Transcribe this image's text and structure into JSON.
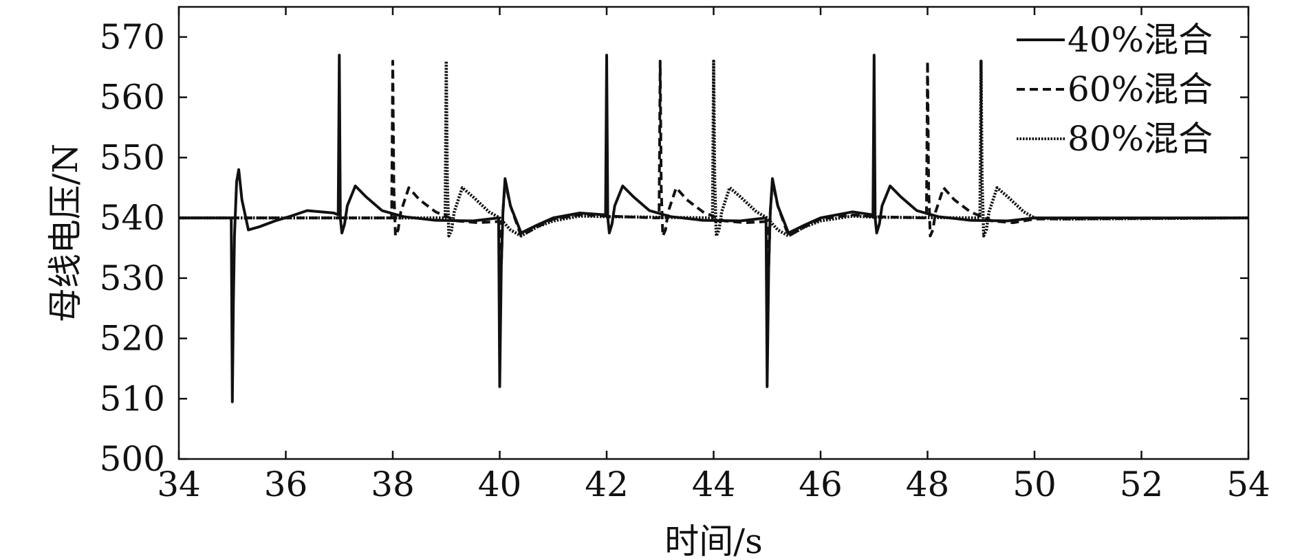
{
  "chart_data": {
    "type": "line",
    "title": "",
    "xlabel": "时间/s",
    "ylabel": "母线电压/N",
    "xlim": [
      34,
      54
    ],
    "ylim": [
      500,
      575
    ],
    "xticks": [
      34,
      36,
      38,
      40,
      42,
      44,
      46,
      48,
      50,
      52,
      54
    ],
    "yticks": [
      500,
      510,
      520,
      530,
      540,
      550,
      560,
      570
    ],
    "grid": false,
    "legend_position": "top-right",
    "series": [
      {
        "name": "40%混合",
        "style": "solid",
        "x": [
          34.0,
          34.98,
          35.0,
          35.02,
          35.04,
          35.08,
          35.12,
          35.18,
          35.3,
          35.5,
          35.8,
          36.1,
          36.4,
          36.9,
          36.98,
          37.0,
          37.02,
          37.05,
          37.1,
          37.15,
          37.3,
          37.5,
          37.8,
          38.2,
          38.8,
          39.5,
          39.98,
          40.0,
          40.03,
          40.06,
          40.1,
          40.2,
          40.4,
          40.7,
          41.0,
          41.5,
          41.98,
          42.0,
          42.02,
          42.05,
          42.1,
          42.15,
          42.3,
          42.5,
          42.8,
          43.2,
          43.8,
          44.5,
          44.98,
          45.0,
          45.03,
          45.06,
          45.1,
          45.2,
          45.4,
          45.7,
          46.0,
          46.6,
          46.98,
          47.0,
          47.02,
          47.05,
          47.1,
          47.15,
          47.3,
          47.5,
          47.8,
          48.2,
          48.8,
          49.5,
          50.0,
          54.0
        ],
        "y": [
          540.0,
          540.0,
          509.5,
          526.0,
          537.0,
          546.0,
          548.0,
          543.0,
          538.0,
          538.5,
          539.5,
          540.3,
          541.2,
          540.8,
          540.5,
          567.0,
          540.0,
          537.5,
          539.0,
          542.0,
          545.3,
          543.5,
          541.2,
          540.2,
          539.6,
          539.5,
          540.0,
          512.0,
          532.0,
          541.0,
          546.5,
          542.0,
          537.5,
          538.8,
          540.0,
          540.8,
          540.5,
          567.0,
          540.0,
          537.5,
          539.0,
          542.0,
          545.3,
          543.5,
          541.2,
          540.2,
          539.6,
          539.5,
          540.0,
          512.0,
          532.0,
          541.0,
          546.5,
          542.0,
          537.5,
          538.8,
          540.0,
          541.0,
          540.5,
          567.0,
          540.0,
          537.5,
          539.0,
          542.0,
          545.3,
          543.5,
          541.2,
          540.2,
          539.6,
          539.5,
          540.0,
          540.0
        ]
      },
      {
        "name": "60%混合",
        "style": "dashed",
        "x": [
          34.0,
          37.9,
          37.98,
          38.0,
          38.02,
          38.05,
          38.1,
          38.15,
          38.3,
          38.5,
          38.8,
          39.2,
          39.6,
          40.0,
          40.03,
          40.06,
          40.1,
          40.2,
          40.4,
          40.7,
          41.0,
          41.5,
          42.0,
          42.9,
          42.98,
          43.0,
          43.02,
          43.05,
          43.1,
          43.15,
          43.3,
          43.5,
          43.8,
          44.2,
          44.6,
          45.0,
          45.03,
          45.06,
          45.1,
          45.2,
          45.4,
          45.7,
          46.0,
          46.6,
          47.0,
          47.9,
          47.98,
          48.0,
          48.02,
          48.05,
          48.1,
          48.15,
          48.3,
          48.5,
          48.8,
          49.2,
          49.6,
          50.0,
          54.0
        ],
        "y": [
          540.0,
          540.0,
          540.0,
          566.0,
          545.0,
          537.0,
          538.0,
          541.0,
          545.0,
          543.0,
          541.0,
          539.5,
          539.2,
          539.4,
          532.0,
          541.0,
          546.0,
          542.0,
          537.0,
          538.5,
          539.8,
          540.5,
          540.3,
          540.0,
          540.0,
          566.0,
          545.0,
          537.0,
          538.0,
          541.0,
          545.0,
          543.0,
          541.0,
          539.5,
          539.2,
          539.4,
          532.0,
          541.0,
          546.0,
          542.0,
          537.0,
          538.5,
          539.8,
          540.5,
          540.2,
          540.0,
          540.0,
          566.0,
          545.0,
          537.0,
          538.0,
          541.0,
          545.0,
          543.0,
          541.0,
          539.5,
          539.2,
          539.8,
          540.0
        ]
      },
      {
        "name": "80%混合",
        "style": "dotted",
        "x": [
          34.0,
          38.9,
          38.98,
          39.0,
          39.02,
          39.05,
          39.1,
          39.15,
          39.3,
          39.5,
          39.8,
          40.0,
          40.2,
          40.4,
          40.7,
          41.0,
          41.5,
          42.0,
          43.9,
          43.98,
          44.0,
          44.02,
          44.05,
          44.1,
          44.15,
          44.3,
          44.5,
          44.8,
          45.0,
          45.2,
          45.4,
          45.7,
          46.0,
          46.6,
          47.0,
          48.9,
          48.98,
          49.0,
          49.02,
          49.05,
          49.1,
          49.15,
          49.3,
          49.5,
          49.8,
          50.0,
          50.5,
          54.0
        ],
        "y": [
          540.0,
          540.0,
          540.0,
          566.0,
          546.0,
          537.0,
          538.0,
          541.0,
          545.0,
          543.5,
          541.0,
          540.0,
          538.0,
          537.0,
          538.5,
          539.5,
          540.3,
          540.2,
          540.0,
          540.0,
          566.0,
          546.0,
          537.0,
          538.0,
          541.0,
          545.0,
          543.5,
          541.0,
          540.0,
          538.0,
          537.0,
          538.5,
          539.5,
          540.3,
          540.1,
          540.0,
          540.0,
          566.0,
          546.0,
          537.0,
          538.0,
          541.0,
          545.0,
          543.5,
          541.0,
          540.0,
          539.8,
          540.0
        ]
      }
    ]
  }
}
